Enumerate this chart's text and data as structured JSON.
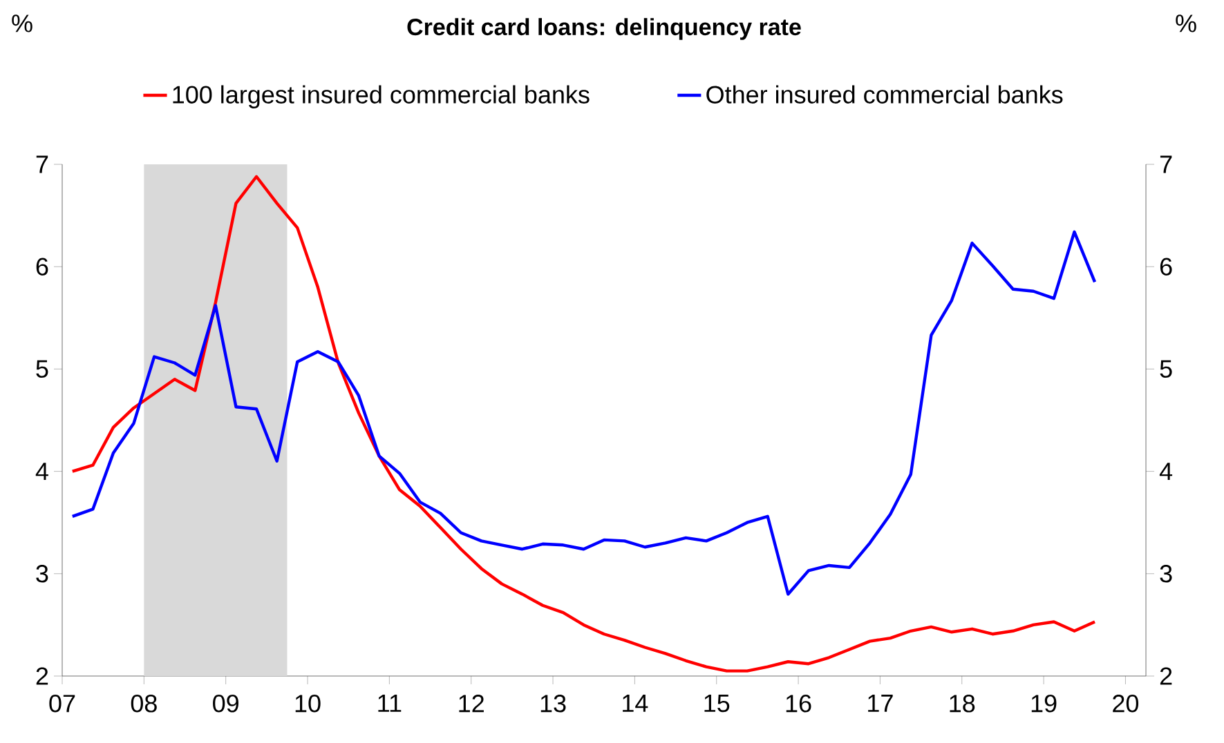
{
  "chart_data": {
    "type": "line",
    "title": "Credit card loans: delinquency rate",
    "ylabel": "%",
    "y2label": "%",
    "x": [
      2007.125,
      2007.375,
      2007.625,
      2007.875,
      2008.125,
      2008.375,
      2008.625,
      2008.875,
      2009.125,
      2009.375,
      2009.625,
      2009.875,
      2010.125,
      2010.375,
      2010.625,
      2010.875,
      2011.125,
      2011.375,
      2011.625,
      2011.875,
      2012.125,
      2012.375,
      2012.625,
      2012.875,
      2013.125,
      2013.375,
      2013.625,
      2013.875,
      2014.125,
      2014.375,
      2014.625,
      2014.875,
      2015.125,
      2015.375,
      2015.625,
      2015.875,
      2016.125,
      2016.375,
      2016.625,
      2016.875,
      2017.125,
      2017.375,
      2017.625,
      2017.875,
      2018.125,
      2018.375,
      2018.625,
      2018.875,
      2019.125,
      2019.375,
      2019.625
    ],
    "series": [
      {
        "name": "100 largest insured commercial banks",
        "color": "#ff0000",
        "values": [
          4.0,
          4.06,
          4.43,
          4.62,
          4.76,
          4.9,
          4.79,
          5.65,
          6.62,
          6.88,
          6.62,
          6.38,
          5.8,
          5.06,
          4.57,
          4.15,
          3.82,
          3.66,
          3.45,
          3.24,
          3.05,
          2.9,
          2.8,
          2.69,
          2.62,
          2.5,
          2.41,
          2.35,
          2.28,
          2.22,
          2.15,
          2.09,
          2.05,
          2.05,
          2.09,
          2.14,
          2.12,
          2.18,
          2.26,
          2.34,
          2.37,
          2.44,
          2.48,
          2.43,
          2.46,
          2.41,
          2.44,
          2.5,
          2.53,
          2.44,
          2.53
        ]
      },
      {
        "name": "Other insured commercial banks",
        "color": "#0000ff",
        "values": [
          3.56,
          3.63,
          4.18,
          4.47,
          5.12,
          5.06,
          4.94,
          5.62,
          4.63,
          4.61,
          4.1,
          5.07,
          5.17,
          5.07,
          4.74,
          4.15,
          3.98,
          3.7,
          3.59,
          3.4,
          3.32,
          3.28,
          3.24,
          3.29,
          3.28,
          3.24,
          3.33,
          3.32,
          3.26,
          3.3,
          3.35,
          3.32,
          3.4,
          3.5,
          3.56,
          2.8,
          3.03,
          3.08,
          3.06,
          3.3,
          3.58,
          3.97,
          5.33,
          5.67,
          6.23,
          6.01,
          5.78,
          5.76,
          5.69,
          6.34,
          5.85
        ]
      }
    ],
    "xlim": [
      2007,
      2020.25
    ],
    "xticks": [
      {
        "value": 2007,
        "label": "07"
      },
      {
        "value": 2008,
        "label": "08"
      },
      {
        "value": 2009,
        "label": "09"
      },
      {
        "value": 2010,
        "label": "10"
      },
      {
        "value": 2011,
        "label": "11"
      },
      {
        "value": 2012,
        "label": "12"
      },
      {
        "value": 2013,
        "label": "13"
      },
      {
        "value": 2014,
        "label": "14"
      },
      {
        "value": 2015,
        "label": "15"
      },
      {
        "value": 2016,
        "label": "16"
      },
      {
        "value": 2017,
        "label": "17"
      },
      {
        "value": 2018,
        "label": "18"
      },
      {
        "value": 2019,
        "label": "19"
      },
      {
        "value": 2020,
        "label": "20"
      }
    ],
    "ylim": [
      2,
      7
    ],
    "yticks": [
      2,
      3,
      4,
      5,
      6,
      7
    ],
    "y2lim": [
      2,
      7
    ],
    "y2ticks": [
      2,
      3,
      4,
      5,
      6,
      7
    ],
    "bands": [
      {
        "axis": "x",
        "from": 2008,
        "to": 2009.75,
        "color": "#d9d9d9"
      }
    ],
    "legend": "top",
    "line_style": "solid"
  }
}
